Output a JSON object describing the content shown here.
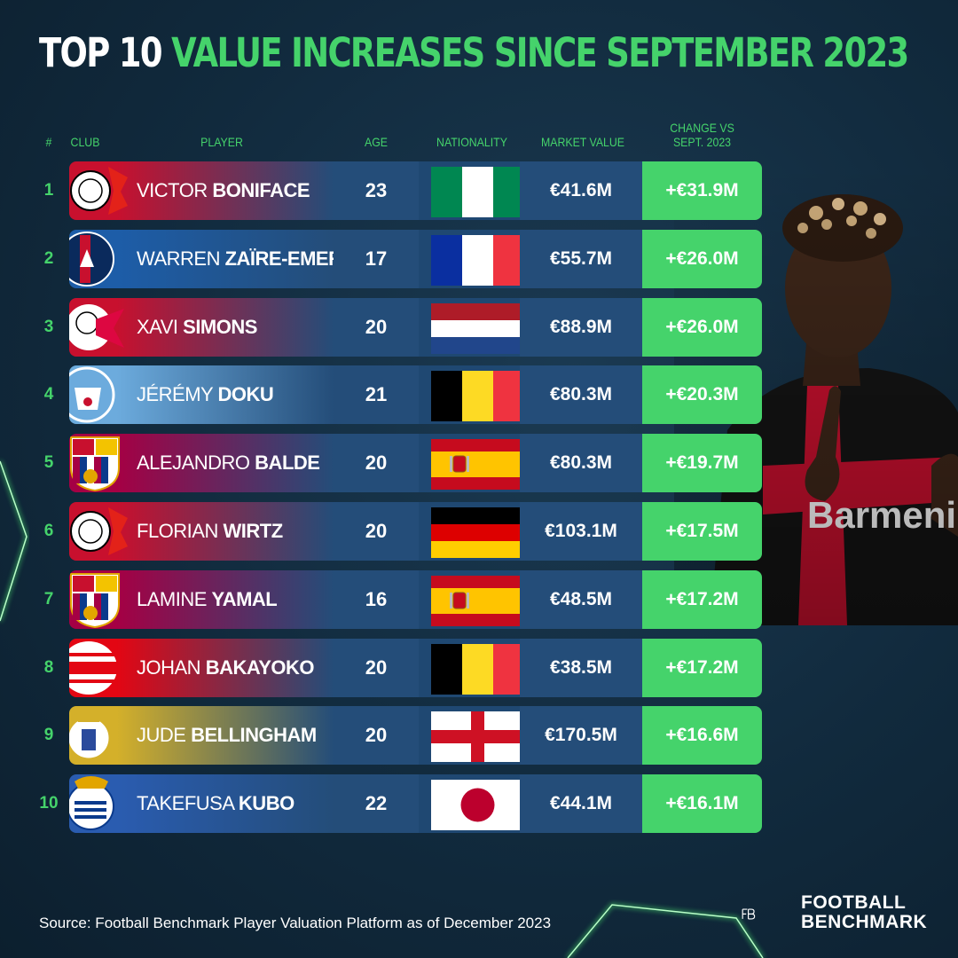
{
  "title": {
    "part1": "TOP 10",
    "part2": "VALUE INCREASES SINCE SEPTEMBER 2023"
  },
  "headers": {
    "rank": "#",
    "club": "CLUB",
    "player": "PLAYER",
    "age": "AGE",
    "nationality": "NATIONALITY",
    "market_value": "MARKET VALUE",
    "change_line1": "CHANGE VS",
    "change_line2": "SEPT. 2023"
  },
  "rows": [
    {
      "rank": "1",
      "first": "VICTOR",
      "last": "BONIFACE",
      "age": "23",
      "market_value": "€41.6M",
      "change": "+€31.9M",
      "club": "leverkusen",
      "flag": "nigeria",
      "club_color": "#c8102e"
    },
    {
      "rank": "2",
      "first": "WARREN",
      "last": "ZAÏRE-EMERY",
      "age": "17",
      "market_value": "€55.7M",
      "change": "+€26.0M",
      "club": "psg",
      "flag": "france",
      "club_color": "#1d5da8"
    },
    {
      "rank": "3",
      "first": "XAVI",
      "last": "SIMONS",
      "age": "20",
      "market_value": "€88.9M",
      "change": "+€26.0M",
      "club": "leipzig",
      "flag": "netherlands",
      "club_color": "#c8102e"
    },
    {
      "rank": "4",
      "first": "JÉRÉMY",
      "last": "DOKU",
      "age": "21",
      "market_value": "€80.3M",
      "change": "+€20.3M",
      "club": "mancity",
      "flag": "belgium",
      "club_color": "#6cabdd"
    },
    {
      "rank": "5",
      "first": "ALEJANDRO",
      "last": "BALDE",
      "age": "20",
      "market_value": "€80.3M",
      "change": "+€19.7M",
      "club": "barcelona",
      "flag": "spain",
      "club_color": "#a50044"
    },
    {
      "rank": "6",
      "first": "FLORIAN",
      "last": "WIRTZ",
      "age": "20",
      "market_value": "€103.1M",
      "change": "+€17.5M",
      "club": "leverkusen",
      "flag": "germany",
      "club_color": "#c8102e"
    },
    {
      "rank": "7",
      "first": "LAMINE",
      "last": "YAMAL",
      "age": "16",
      "market_value": "€48.5M",
      "change": "+€17.2M",
      "club": "barcelona",
      "flag": "spain",
      "club_color": "#a50044"
    },
    {
      "rank": "8",
      "first": "JOHAN",
      "last": "BAKAYOKO",
      "age": "20",
      "market_value": "€38.5M",
      "change": "+€17.2M",
      "club": "psv",
      "flag": "belgium",
      "club_color": "#e30613"
    },
    {
      "rank": "9",
      "first": "JUDE",
      "last": "BELLINGHAM",
      "age": "20",
      "market_value": "€170.5M",
      "change": "+€16.6M",
      "club": "realmadrid",
      "flag": "england",
      "club_color": "#d4b02a"
    },
    {
      "rank": "10",
      "first": "TAKEFUSA",
      "last": "KUBO",
      "age": "22",
      "market_value": "€44.1M",
      "change": "+€16.1M",
      "club": "realsociedad",
      "flag": "japan",
      "club_color": "#2a5cb0"
    }
  ],
  "source": "Source: Football Benchmark Player Valuation Platform as of December 2023",
  "logo": {
    "line1": "FOOTBALL",
    "line2": "BENCHMARK"
  },
  "colors": {
    "accent": "#45d36b",
    "row_blue": "#244d79",
    "background": "#112a3d"
  }
}
